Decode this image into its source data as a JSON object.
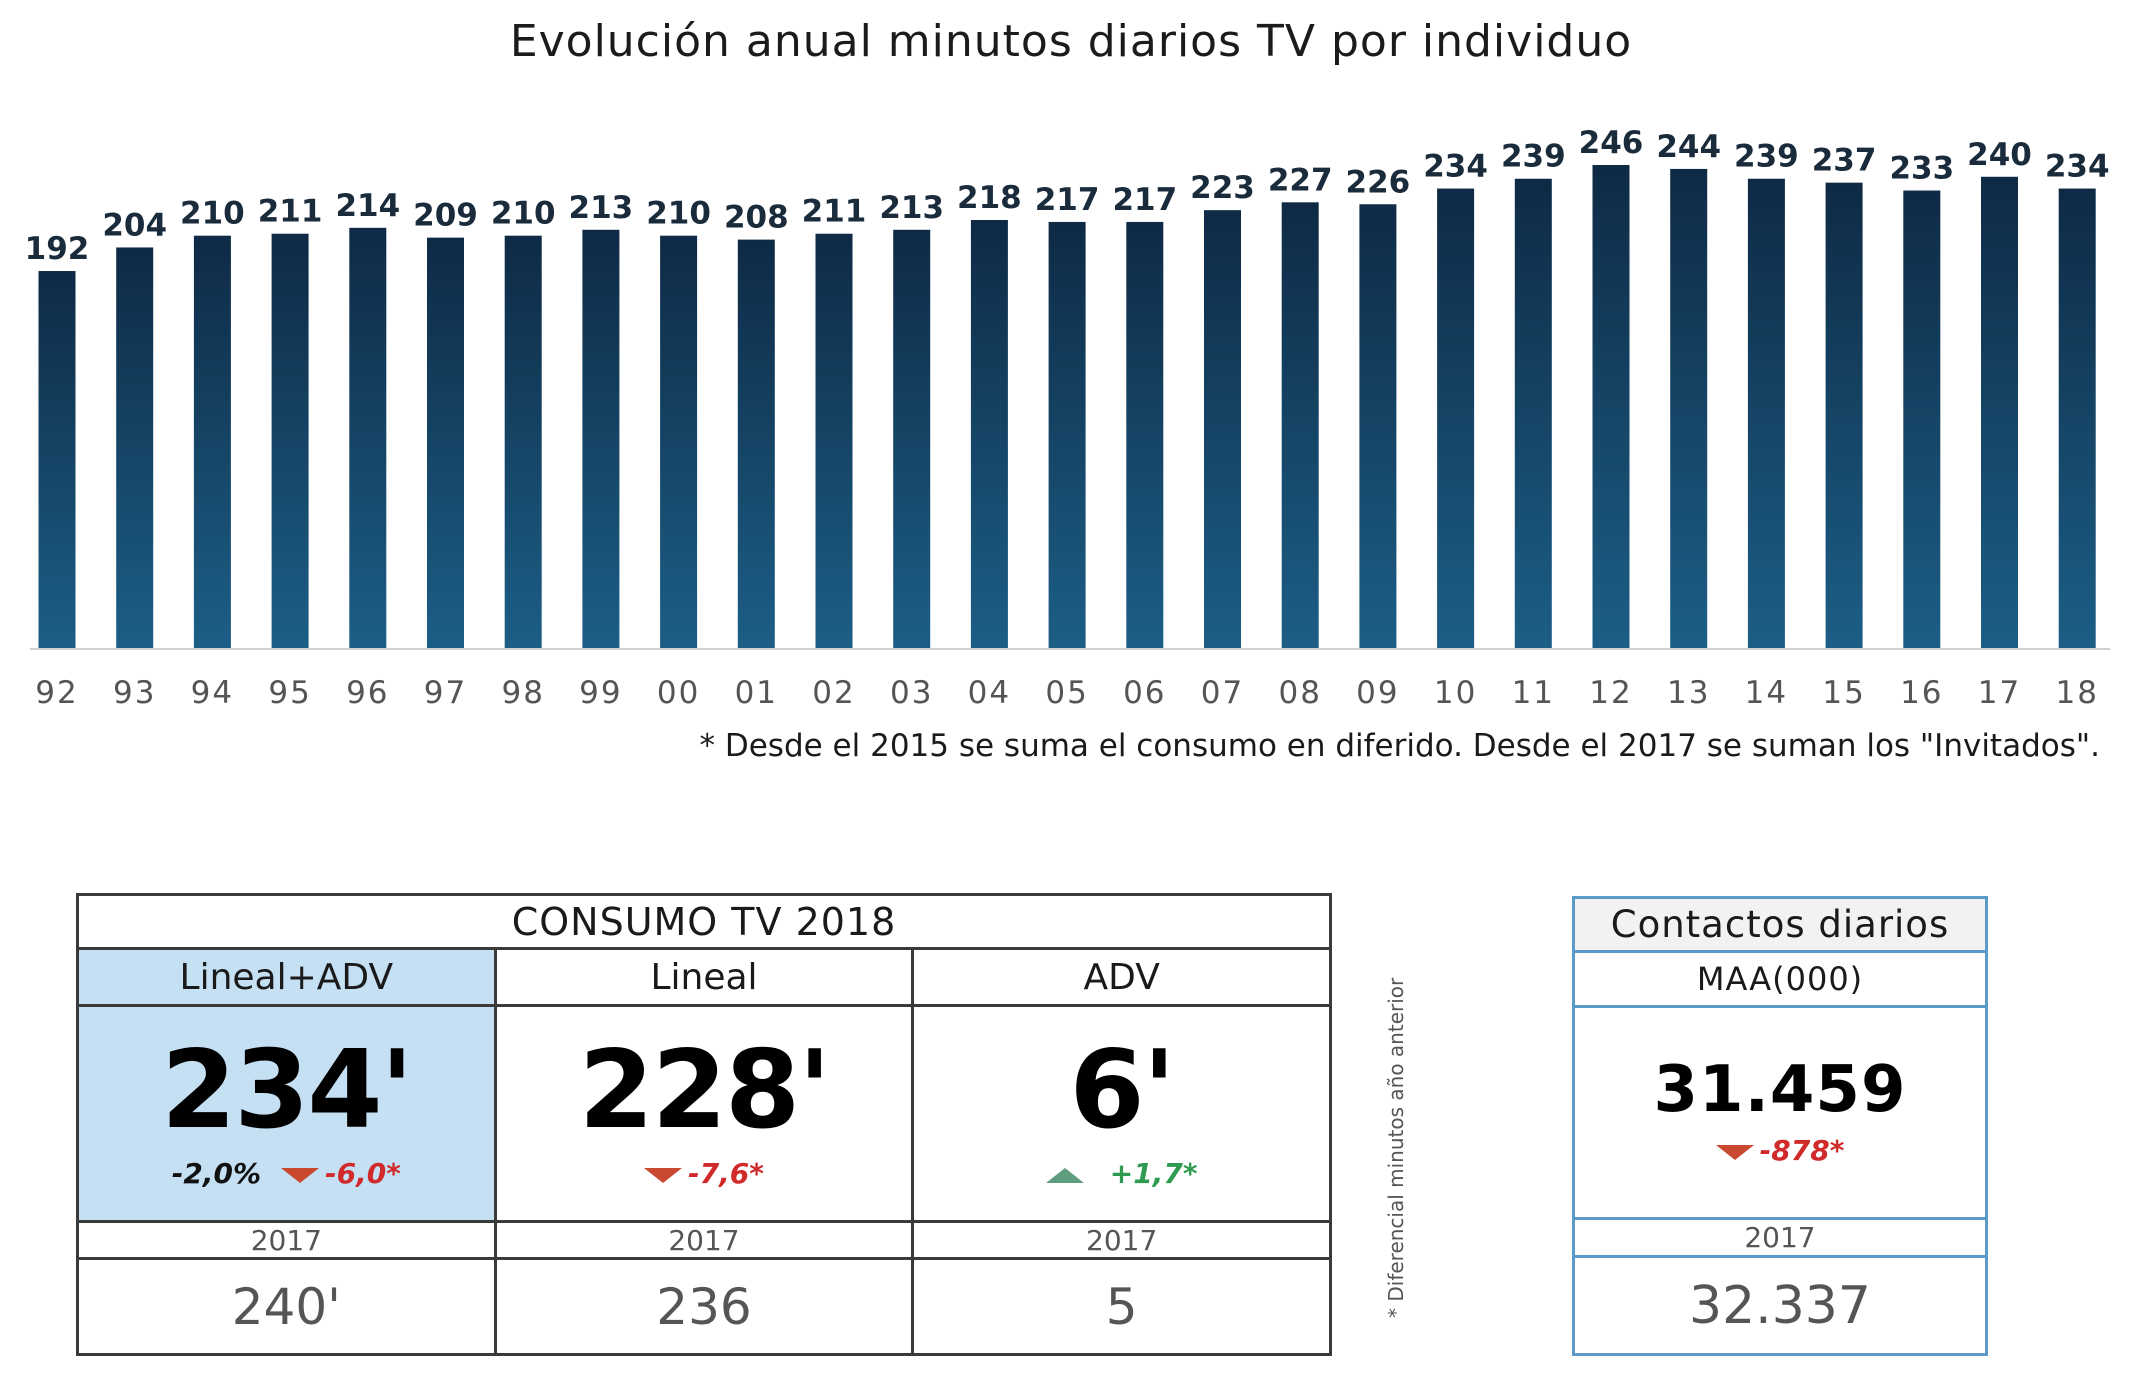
{
  "chart_data": {
    "type": "bar",
    "title": "Evolución anual minutos diarios TV por individuo",
    "categories": [
      "92",
      "93",
      "94",
      "95",
      "96",
      "97",
      "98",
      "99",
      "00",
      "01",
      "02",
      "03",
      "04",
      "05",
      "06",
      "07",
      "08",
      "09",
      "10",
      "11",
      "12",
      "13",
      "14",
      "15",
      "16",
      "17",
      "18"
    ],
    "values": [
      192,
      204,
      210,
      211,
      214,
      209,
      210,
      213,
      210,
      208,
      211,
      213,
      218,
      217,
      217,
      223,
      227,
      226,
      234,
      239,
      246,
      244,
      239,
      237,
      233,
      240,
      234
    ],
    "data_labels": [
      "192",
      "204",
      "210",
      "211",
      "214",
      "209",
      "210",
      "213",
      "210",
      "208",
      "211",
      "213",
      "218",
      "217",
      "217",
      "223",
      "227",
      "226",
      "234",
      "239",
      "246",
      "244",
      "239",
      "237",
      "233",
      "240",
      "234"
    ],
    "ylim": [
      0,
      246
    ],
    "grid": false,
    "legend": "none",
    "colors": {
      "bar_top": "#0e2a45",
      "bar_bottom": "#1c5e86",
      "label": "#1a2b3c"
    }
  },
  "footnote": "* Desde el 2015 se suma el consumo en diferido. Desde el 2017 se suman los \"Invitados\".",
  "consumo": {
    "title": "CONSUMO TV 2018",
    "columns": [
      {
        "label": "Lineal+ADV",
        "value": "234'",
        "pct": "-2,0%",
        "delta": "-6,0*",
        "delta_direction": "down",
        "year": "2017",
        "prev": "240'"
      },
      {
        "label": "Lineal",
        "value": "228'",
        "pct": "",
        "delta": "-7,6*",
        "delta_direction": "down",
        "year": "2017",
        "prev": "236"
      },
      {
        "label": "ADV",
        "value": "6'",
        "pct": "",
        "delta": "+1,7*",
        "delta_direction": "up",
        "year": "2017",
        "prev": "5"
      }
    ]
  },
  "side_note": "* Diferencial minutos año anterior",
  "contactos": {
    "title": "Contactos diarios",
    "label": "MAA(000)",
    "value": "31.459",
    "delta": "-878*",
    "delta_direction": "down",
    "year": "2017",
    "prev": "32.337"
  }
}
